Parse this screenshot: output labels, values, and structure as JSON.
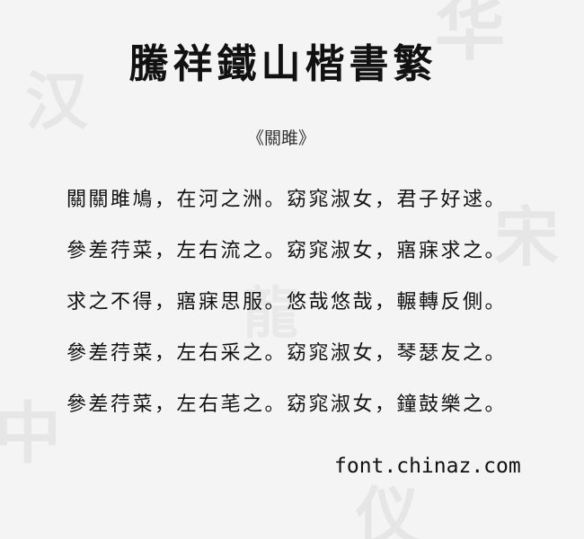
{
  "font_name": "騰祥鐵山楷書繁",
  "poem_title": "《關雎》",
  "poem_lines": [
    "關關雎鳩，在河之洲。窈窕淑女，君子好逑。",
    "參差荇菜，左右流之。窈窕淑女，寤寐求之。",
    "求之不得，寤寐思服。悠哉悠哉，輾轉反側。",
    "參差荇菜，左右采之。窈窕淑女，琴瑟友之。",
    "參差荇菜，左右芼之。窈窕淑女，鐘鼓樂之。"
  ],
  "site_label": "font.chinaz.com",
  "watermark_chars": [
    "汉",
    "华",
    "宋",
    "龍",
    "中",
    "仪"
  ],
  "colors": {
    "background": "#f4f4f4",
    "text": "#151515",
    "watermark": "#e6e6e6"
  }
}
